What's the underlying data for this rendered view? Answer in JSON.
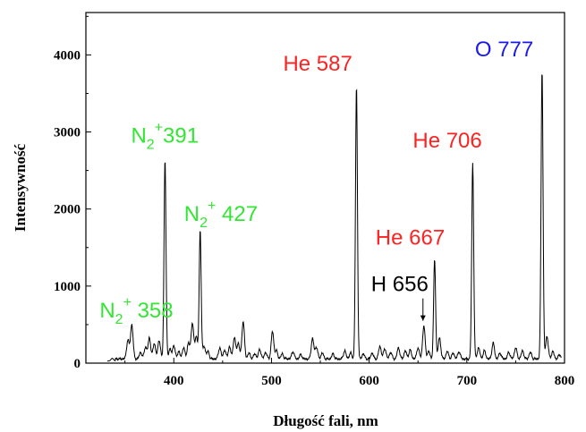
{
  "chart_data": {
    "type": "line",
    "title": "",
    "xlabel": "Długość fali, nm",
    "ylabel": "Intensywność",
    "xlim": [
      310,
      800
    ],
    "ylim": [
      0,
      4550
    ],
    "xticks": [
      400,
      500,
      600,
      700,
      800
    ],
    "yticks": [
      0,
      1000,
      2000,
      3000,
      4000
    ],
    "xtick_labels": [
      "400",
      "500",
      "600",
      "700",
      "800"
    ],
    "ytick_labels": [
      "0",
      "1000",
      "2000",
      "3000",
      "4000"
    ],
    "grid": false,
    "baseline": 55,
    "series": [
      {
        "line_color": "#000000",
        "peaks": [
          {
            "x": 337,
            "y": 90
          },
          {
            "x": 353,
            "y": 300
          },
          {
            "x": 357,
            "y": 500
          },
          {
            "x": 366,
            "y": 140
          },
          {
            "x": 371,
            "y": 210
          },
          {
            "x": 375,
            "y": 330
          },
          {
            "x": 380,
            "y": 260
          },
          {
            "x": 385,
            "y": 300
          },
          {
            "x": 391,
            "y": 2650
          },
          {
            "x": 396,
            "y": 180
          },
          {
            "x": 400,
            "y": 230
          },
          {
            "x": 405,
            "y": 150
          },
          {
            "x": 410,
            "y": 200
          },
          {
            "x": 415,
            "y": 260
          },
          {
            "x": 419,
            "y": 520
          },
          {
            "x": 423,
            "y": 350
          },
          {
            "x": 427,
            "y": 1730
          },
          {
            "x": 431,
            "y": 220
          },
          {
            "x": 435,
            "y": 150
          },
          {
            "x": 447,
            "y": 200
          },
          {
            "x": 452,
            "y": 170
          },
          {
            "x": 457,
            "y": 210
          },
          {
            "x": 462,
            "y": 330
          },
          {
            "x": 466,
            "y": 260
          },
          {
            "x": 471,
            "y": 540
          },
          {
            "x": 477,
            "y": 130
          },
          {
            "x": 483,
            "y": 120
          },
          {
            "x": 488,
            "y": 180
          },
          {
            "x": 494,
            "y": 140
          },
          {
            "x": 501,
            "y": 410
          },
          {
            "x": 505,
            "y": 160
          },
          {
            "x": 511,
            "y": 120
          },
          {
            "x": 522,
            "y": 150
          },
          {
            "x": 530,
            "y": 110
          },
          {
            "x": 542,
            "y": 320
          },
          {
            "x": 546,
            "y": 210
          },
          {
            "x": 552,
            "y": 130
          },
          {
            "x": 563,
            "y": 120
          },
          {
            "x": 575,
            "y": 160
          },
          {
            "x": 581,
            "y": 130
          },
          {
            "x": 587,
            "y": 3600
          },
          {
            "x": 594,
            "y": 120
          },
          {
            "x": 603,
            "y": 130
          },
          {
            "x": 611,
            "y": 220
          },
          {
            "x": 616,
            "y": 190
          },
          {
            "x": 622,
            "y": 140
          },
          {
            "x": 630,
            "y": 200
          },
          {
            "x": 637,
            "y": 160
          },
          {
            "x": 642,
            "y": 170
          },
          {
            "x": 650,
            "y": 200
          },
          {
            "x": 656,
            "y": 480
          },
          {
            "x": 661,
            "y": 150
          },
          {
            "x": 667,
            "y": 1350
          },
          {
            "x": 672,
            "y": 330
          },
          {
            "x": 680,
            "y": 150
          },
          {
            "x": 686,
            "y": 130
          },
          {
            "x": 692,
            "y": 150
          },
          {
            "x": 706,
            "y": 2600
          },
          {
            "x": 712,
            "y": 200
          },
          {
            "x": 718,
            "y": 160
          },
          {
            "x": 727,
            "y": 260
          },
          {
            "x": 734,
            "y": 130
          },
          {
            "x": 743,
            "y": 140
          },
          {
            "x": 750,
            "y": 200
          },
          {
            "x": 757,
            "y": 160
          },
          {
            "x": 765,
            "y": 140
          },
          {
            "x": 777,
            "y": 3820
          },
          {
            "x": 782,
            "y": 350
          },
          {
            "x": 788,
            "y": 150
          },
          {
            "x": 795,
            "y": 110
          }
        ]
      }
    ],
    "annotations": [
      {
        "key": "n2-391",
        "main": "N",
        "sub": "2",
        "sup": "+",
        "rest": "391",
        "color": "#33e633",
        "x": 391,
        "y": 2650
      },
      {
        "key": "n2-427",
        "main": "N",
        "sub": "2",
        "sup": "+",
        "rest": " 427",
        "color": "#33e633",
        "x": 427,
        "y": 1730
      },
      {
        "key": "n2-358",
        "main": "N",
        "sub": "2",
        "sup": "+",
        "rest": " 358",
        "color": "#33e633",
        "x": 357,
        "y": 500
      },
      {
        "key": "he-587",
        "main": "He 587",
        "color": "#ff2222",
        "x": 587,
        "y": 3600
      },
      {
        "key": "he-706",
        "main": "He 706",
        "color": "#ff2222",
        "x": 706,
        "y": 2600
      },
      {
        "key": "he-667",
        "main": "He 667",
        "color": "#ff2222",
        "x": 667,
        "y": 1350
      },
      {
        "key": "h-656",
        "main": "H 656",
        "color": "#000000",
        "x": 656,
        "y": 480,
        "arrow": true
      },
      {
        "key": "o-777",
        "main": "O 777",
        "color": "#1a1aee",
        "x": 777,
        "y": 3820
      }
    ]
  }
}
